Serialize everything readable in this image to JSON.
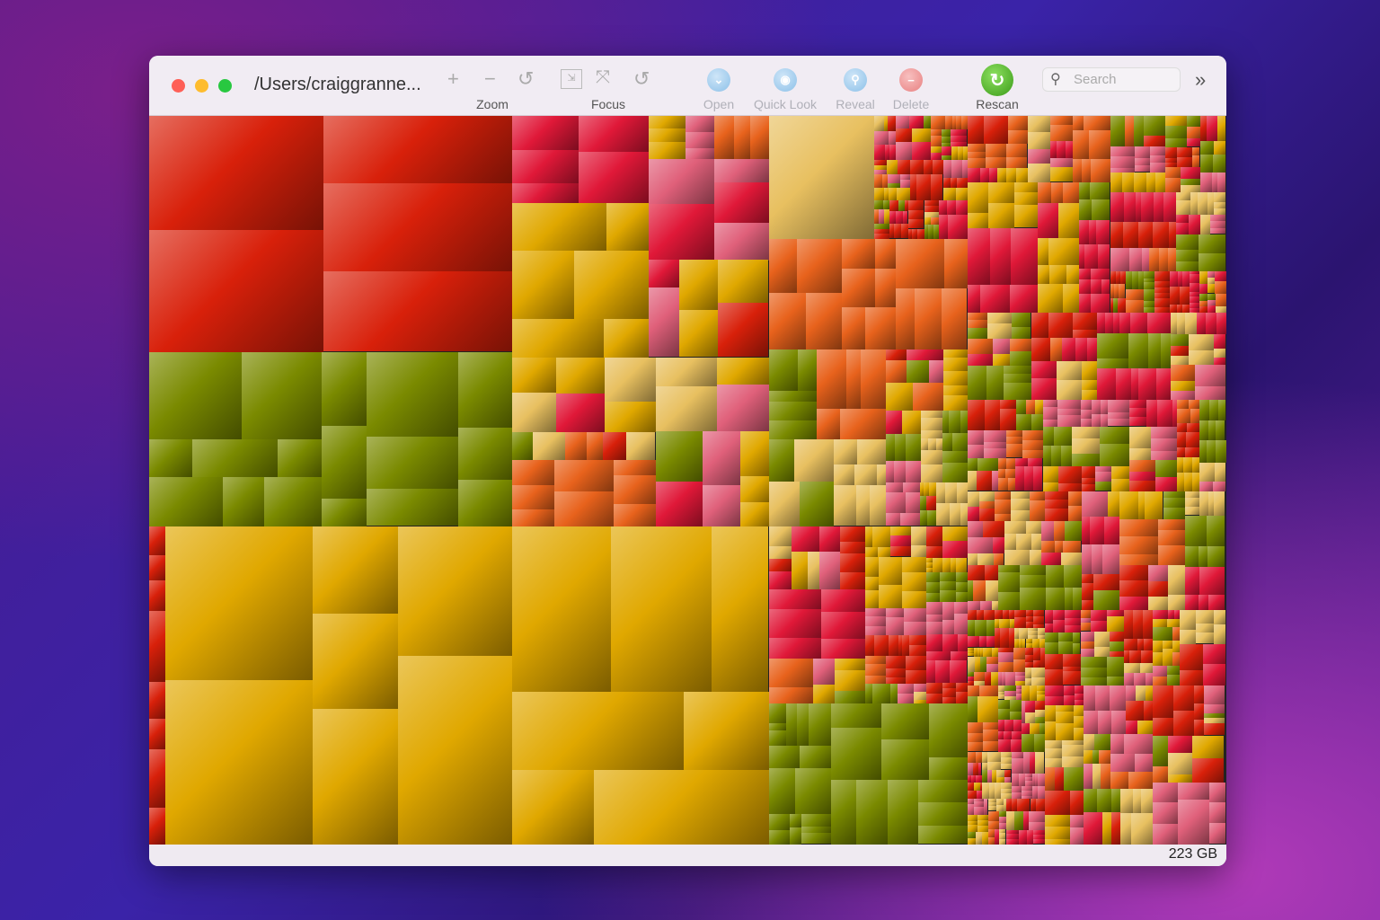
{
  "window": {
    "title": "/Users/craiggranne..."
  },
  "toolbar": {
    "zoom_label": "Zoom",
    "focus_label": "Focus",
    "open_label": "Open",
    "quicklook_label": "Quick Look",
    "reveal_label": "Reveal",
    "delete_label": "Delete",
    "rescan_label": "Rescan",
    "search_placeholder": "Search",
    "overflow": "»"
  },
  "status": {
    "size": "223 GB"
  },
  "palette": {
    "red": "#d8200a",
    "orange": "#e8621c",
    "green": "#7a8a00",
    "yellow": "#e0a800",
    "pink": "#e0607a",
    "crimson": "#e01838",
    "tan": "#e8c060"
  }
}
